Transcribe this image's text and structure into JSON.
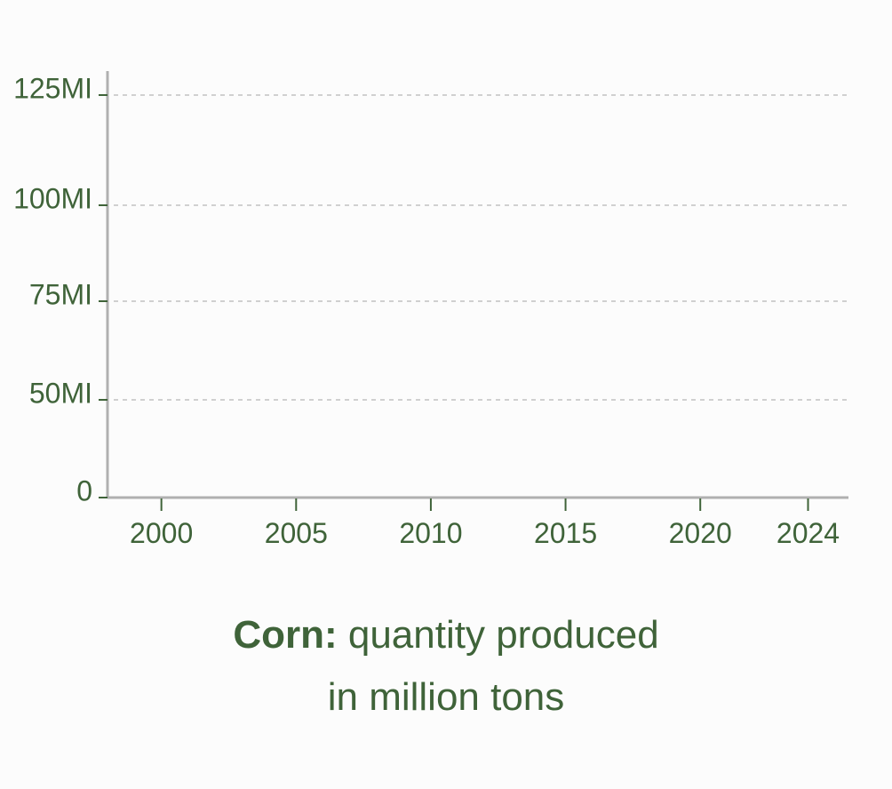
{
  "caption": {
    "crop": "Corn:",
    "line1": "quantity produced",
    "line2": "in million tons"
  },
  "colors": {
    "text": "#3f6339",
    "axis": "#b0b0b0",
    "grid": "#d0d0d0",
    "background": "#fcfcfc"
  },
  "chart_data": {
    "type": "line",
    "title": "",
    "xlabel": "",
    "ylabel": "",
    "x_ticks": [
      "2000",
      "2005",
      "2010",
      "2015",
      "2020",
      "2024"
    ],
    "x_tick_values": [
      2000,
      2005,
      2010,
      2015,
      2020,
      2024
    ],
    "y_ticks": [
      {
        "value": 0,
        "label": "0"
      },
      {
        "value": 50,
        "label": "50MI"
      },
      {
        "value": 75,
        "label": "75MI"
      },
      {
        "value": 100,
        "label": "100MI"
      },
      {
        "value": 125,
        "label": "125MI"
      }
    ],
    "xlim": [
      1998,
      2025.5
    ],
    "grid": true,
    "series": []
  }
}
